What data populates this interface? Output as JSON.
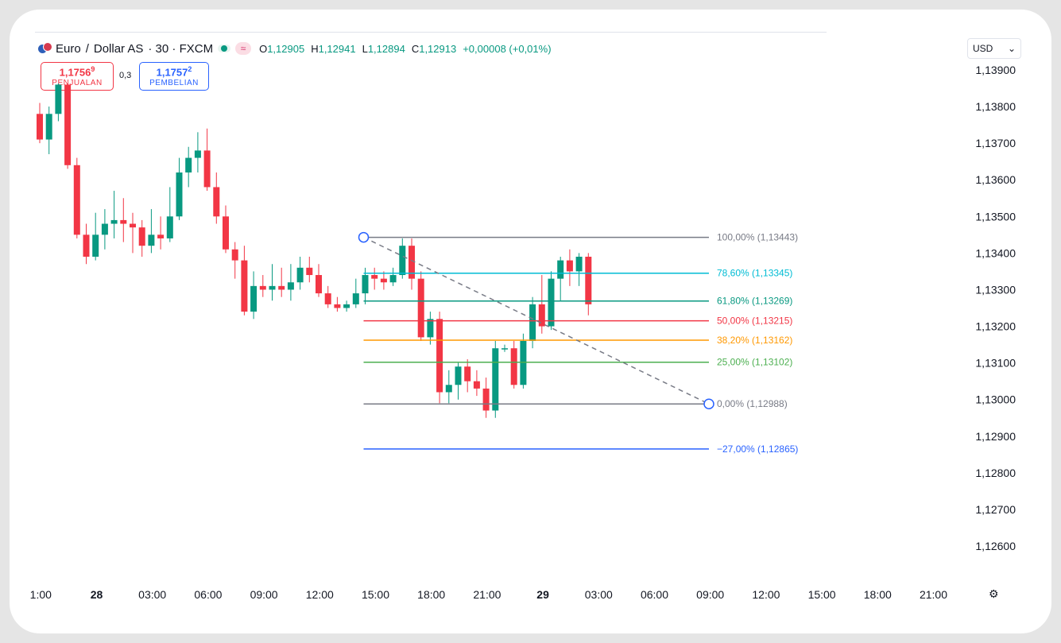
{
  "header": {
    "symbol": "Euro",
    "separator": "/",
    "quote": "Dollar AS",
    "interval_exchange": "· 30 · FXCM",
    "replay_icon": "≈",
    "ohlc": {
      "o_label": "O",
      "o": "1,12905",
      "h_label": "H",
      "h": "1,12941",
      "l_label": "L",
      "l": "1,12894",
      "c_label": "C",
      "c": "1,12913",
      "change": "+0,00008 (+0,01%)"
    }
  },
  "trade": {
    "sell_price_main": "1,1756",
    "sell_price_sup": "9",
    "sell_label": "PENJUALAN",
    "spread": "0,3",
    "buy_price_main": "1,1757",
    "buy_price_sup": "2",
    "buy_label": "PEMBELIAN"
  },
  "currency": {
    "value": "USD",
    "chevron": "⌄"
  },
  "settings_icon": "⚙",
  "colors": {
    "up": "#089981",
    "down": "#f23645"
  },
  "chart_data": {
    "type": "candlestick",
    "ylim": [
      1.1254,
      1.1398
    ],
    "y_ticks": [
      {
        "v": 1.139,
        "label": "1,13900"
      },
      {
        "v": 1.138,
        "label": "1,13800"
      },
      {
        "v": 1.137,
        "label": "1,13700"
      },
      {
        "v": 1.136,
        "label": "1,13600"
      },
      {
        "v": 1.135,
        "label": "1,13500"
      },
      {
        "v": 1.134,
        "label": "1,13400"
      },
      {
        "v": 1.133,
        "label": "1,13300"
      },
      {
        "v": 1.132,
        "label": "1,13200"
      },
      {
        "v": 1.131,
        "label": "1,13100"
      },
      {
        "v": 1.13,
        "label": "1,13000"
      },
      {
        "v": 1.129,
        "label": "1,12900"
      },
      {
        "v": 1.128,
        "label": "1,12800"
      },
      {
        "v": 1.127,
        "label": "1,12700"
      },
      {
        "v": 1.126,
        "label": "1,12600"
      }
    ],
    "x_ticks": [
      {
        "i": -1,
        "label": "1:00",
        "bold": false
      },
      {
        "i": 5,
        "label": "28",
        "bold": true
      },
      {
        "i": 11,
        "label": "03:00",
        "bold": false
      },
      {
        "i": 17,
        "label": "06:00",
        "bold": false
      },
      {
        "i": 23,
        "label": "09:00",
        "bold": false
      },
      {
        "i": 29,
        "label": "12:00",
        "bold": false
      },
      {
        "i": 35,
        "label": "15:00",
        "bold": false
      },
      {
        "i": 41,
        "label": "18:00",
        "bold": false
      },
      {
        "i": 47,
        "label": "21:00",
        "bold": false
      },
      {
        "i": 53,
        "label": "29",
        "bold": true
      },
      {
        "i": 59,
        "label": "03:00",
        "bold": false
      },
      {
        "i": 65,
        "label": "06:00",
        "bold": false
      },
      {
        "i": 71,
        "label": "09:00",
        "bold": false
      },
      {
        "i": 77,
        "label": "12:00",
        "bold": false
      },
      {
        "i": 83,
        "label": "15:00",
        "bold": false
      },
      {
        "i": 89,
        "label": "18:00",
        "bold": false
      },
      {
        "i": 95,
        "label": "21:00",
        "bold": false
      }
    ],
    "candles": [
      [
        1.1378,
        1.1381,
        1.137,
        1.1371
      ],
      [
        1.1371,
        1.138,
        1.1367,
        1.1378
      ],
      [
        1.1378,
        1.1392,
        1.1376,
        1.1386
      ],
      [
        1.1386,
        1.139,
        1.1363,
        1.1364
      ],
      [
        1.1364,
        1.1366,
        1.1344,
        1.1345
      ],
      [
        1.1345,
        1.1348,
        1.1337,
        1.1339
      ],
      [
        1.1339,
        1.1351,
        1.1338,
        1.1345
      ],
      [
        1.1345,
        1.1352,
        1.1341,
        1.1348
      ],
      [
        1.1348,
        1.1357,
        1.1344,
        1.1349
      ],
      [
        1.1349,
        1.1355,
        1.1343,
        1.1348
      ],
      [
        1.1348,
        1.1351,
        1.134,
        1.1347
      ],
      [
        1.1347,
        1.1349,
        1.1339,
        1.1342
      ],
      [
        1.1342,
        1.1352,
        1.134,
        1.1345
      ],
      [
        1.1345,
        1.135,
        1.1341,
        1.1344
      ],
      [
        1.1344,
        1.1358,
        1.1343,
        1.135
      ],
      [
        1.135,
        1.1366,
        1.1349,
        1.1362
      ],
      [
        1.1362,
        1.1369,
        1.1358,
        1.1366
      ],
      [
        1.1366,
        1.1373,
        1.1362,
        1.1368
      ],
      [
        1.1368,
        1.1374,
        1.1357,
        1.1358
      ],
      [
        1.1358,
        1.1362,
        1.1348,
        1.135
      ],
      [
        1.135,
        1.1353,
        1.134,
        1.1341
      ],
      [
        1.1341,
        1.1343,
        1.1333,
        1.1338
      ],
      [
        1.1338,
        1.1342,
        1.1323,
        1.1324
      ],
      [
        1.1324,
        1.1335,
        1.1322,
        1.1331
      ],
      [
        1.1331,
        1.1334,
        1.1328,
        1.133
      ],
      [
        1.133,
        1.1337,
        1.1327,
        1.1331
      ],
      [
        1.1331,
        1.1336,
        1.1328,
        1.133
      ],
      [
        1.133,
        1.1337,
        1.1327,
        1.1332
      ],
      [
        1.1332,
        1.1339,
        1.133,
        1.1336
      ],
      [
        1.1336,
        1.1339,
        1.1332,
        1.1334
      ],
      [
        1.1334,
        1.1337,
        1.1328,
        1.1329
      ],
      [
        1.1329,
        1.1331,
        1.1325,
        1.1326
      ],
      [
        1.1326,
        1.1328,
        1.1324,
        1.1325
      ],
      [
        1.1325,
        1.1327,
        1.1324,
        1.1326
      ],
      [
        1.1326,
        1.1333,
        1.1325,
        1.1329
      ],
      [
        1.1329,
        1.1336,
        1.1326,
        1.1334
      ],
      [
        1.1334,
        1.1336,
        1.133,
        1.1333
      ],
      [
        1.1333,
        1.1335,
        1.133,
        1.1332
      ],
      [
        1.1332,
        1.1336,
        1.1331,
        1.1334
      ],
      [
        1.1334,
        1.1344,
        1.1333,
        1.1342
      ],
      [
        1.1342,
        1.1344,
        1.133,
        1.1333
      ],
      [
        1.1333,
        1.1335,
        1.1316,
        1.1317
      ],
      [
        1.1317,
        1.1324,
        1.1315,
        1.1322
      ],
      [
        1.1322,
        1.1324,
        1.1299,
        1.1302
      ],
      [
        1.1302,
        1.1308,
        1.1299,
        1.1304
      ],
      [
        1.1304,
        1.131,
        1.13,
        1.1309
      ],
      [
        1.1309,
        1.1311,
        1.1302,
        1.1305
      ],
      [
        1.1305,
        1.1308,
        1.1301,
        1.1303
      ],
      [
        1.1303,
        1.1306,
        1.1295,
        1.1297
      ],
      [
        1.1297,
        1.1316,
        1.1295,
        1.1314
      ],
      [
        1.1314,
        1.1315,
        1.1313,
        1.1314
      ],
      [
        1.1314,
        1.1316,
        1.1303,
        1.1304
      ],
      [
        1.1304,
        1.1318,
        1.1303,
        1.1316
      ],
      [
        1.1316,
        1.1328,
        1.1314,
        1.1326
      ],
      [
        1.1326,
        1.1334,
        1.1318,
        1.132
      ],
      [
        1.132,
        1.1335,
        1.1319,
        1.1333
      ],
      [
        1.1333,
        1.1339,
        1.1327,
        1.1338
      ],
      [
        1.1338,
        1.1341,
        1.1331,
        1.1335
      ],
      [
        1.1335,
        1.134,
        1.1331,
        1.1339
      ],
      [
        1.1339,
        1.134,
        1.1323,
        1.1326
      ]
    ],
    "fib": {
      "levels": [
        {
          "label": "100,00% (1,13443)",
          "v": 1.13443,
          "color": "#787b86",
          "anchor": true
        },
        {
          "label": "78,60% (1,13345)",
          "v": 1.13345,
          "color": "#00bcd4"
        },
        {
          "label": "61,80% (1,13269)",
          "v": 1.13269,
          "color": "#089981"
        },
        {
          "label": "50,00% (1,13215)",
          "v": 1.13215,
          "color": "#f23645"
        },
        {
          "label": "38,20% (1,13162)",
          "v": 1.13162,
          "color": "#ff9800"
        },
        {
          "label": "25,00% (1,13102)",
          "v": 1.13102,
          "color": "#4caf50"
        },
        {
          "label": "0,00% (1,12988)",
          "v": 1.12988,
          "color": "#787b86",
          "anchor": true
        },
        {
          "label": "−27,00% (1,12865)",
          "v": 1.12865,
          "color": "#2962ff"
        }
      ],
      "start_index": 35,
      "end_index": 70.5
    }
  }
}
